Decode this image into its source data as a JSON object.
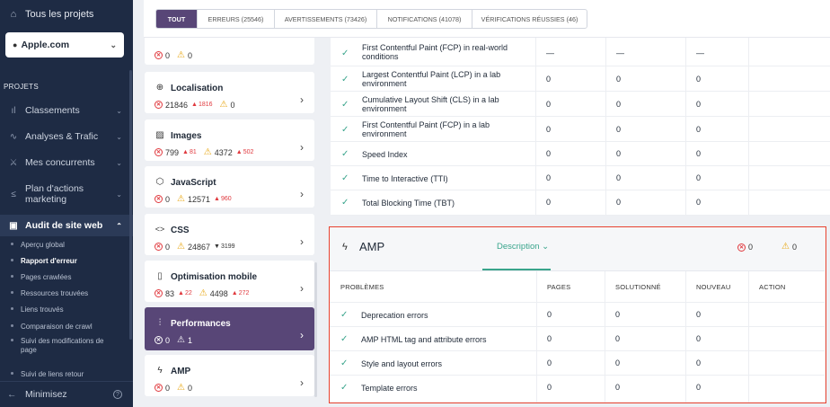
{
  "sidebar": {
    "top_link": "Tous les projets",
    "site": "Apple.com",
    "section": "PROJETS",
    "nav": [
      {
        "label": "Classements",
        "icon": "bar-chart-icon"
      },
      {
        "label": "Analyses & Trafic",
        "icon": "pulse-icon"
      },
      {
        "label": "Mes concurrents",
        "icon": "competitors-icon"
      },
      {
        "label": "Plan d'actions marketing",
        "icon": "plan-icon"
      },
      {
        "label": "Audit de site web",
        "icon": "audit-icon"
      }
    ],
    "sub": [
      "Aperçu global",
      "Rapport d'erreur",
      "Pages crawlées",
      "Ressources trouvées",
      "Liens trouvés",
      "Comparaison de crawl",
      "Suivi des modifications de page",
      "Suivi de liens retour"
    ],
    "minimize": "Minimisez"
  },
  "filters": [
    "TOUT",
    "ERREURS (25546)",
    "AVERTISSEMENTS (73426)",
    "NOTIFICATIONS (41078)",
    "VÉRIFICATIONS RÉUSSIES (46)"
  ],
  "categories": [
    {
      "name": "",
      "icon": "",
      "errors": "0",
      "warnings": "0",
      "err_delta": "",
      "warn_delta": ""
    },
    {
      "name": "Localisation",
      "icon": "globe-icon",
      "errors": "21846",
      "err_delta": "1816",
      "warnings": "0",
      "warn_delta": ""
    },
    {
      "name": "Images",
      "icon": "image-icon",
      "errors": "799",
      "err_delta": "81",
      "warnings": "4372",
      "warn_delta": "502"
    },
    {
      "name": "JavaScript",
      "icon": "code-cube-icon",
      "errors": "0",
      "err_delta": "",
      "warnings": "12571",
      "warn_delta": "960"
    },
    {
      "name": "CSS",
      "icon": "code-icon",
      "errors": "0",
      "err_delta": "",
      "warnings": "24867",
      "warn_delta": "3199"
    },
    {
      "name": "Optimisation mobile",
      "icon": "mobile-icon",
      "errors": "83",
      "err_delta": "22",
      "warnings": "4498",
      "warn_delta": "272"
    },
    {
      "name": "Performances",
      "icon": "sliders-icon",
      "errors": "0",
      "err_delta": "",
      "warnings": "1",
      "warn_delta": ""
    },
    {
      "name": "AMP",
      "icon": "bolt-icon",
      "errors": "0",
      "err_delta": "",
      "warnings": "0",
      "warn_delta": ""
    }
  ],
  "perf_rows": [
    {
      "label": "First Contentful Paint (FCP) in real-world conditions",
      "pages": "—",
      "solved": "—",
      "new": "—"
    },
    {
      "label": "Largest Contentful Paint (LCP) in a lab environment",
      "pages": "0",
      "solved": "0",
      "new": "0"
    },
    {
      "label": "Cumulative Layout Shift (CLS) in a lab environment",
      "pages": "0",
      "solved": "0",
      "new": "0"
    },
    {
      "label": "First Contentful Paint (FCP) in a lab environment",
      "pages": "0",
      "solved": "0",
      "new": "0"
    },
    {
      "label": "Speed Index",
      "pages": "0",
      "solved": "0",
      "new": "0"
    },
    {
      "label": "Time to Interactive (TTI)",
      "pages": "0",
      "solved": "0",
      "new": "0"
    },
    {
      "label": "Total Blocking Time (TBT)",
      "pages": "0",
      "solved": "0",
      "new": "0"
    }
  ],
  "amp": {
    "title": "AMP",
    "description": "Description",
    "errors": "0",
    "warnings": "0",
    "headers": [
      "PROBLÈMES",
      "PAGES",
      "SOLUTIONNÉ",
      "NOUVEAU",
      "ACTION"
    ],
    "rows": [
      {
        "label": "Deprecation errors",
        "pages": "0",
        "solved": "0",
        "new": "0"
      },
      {
        "label": "AMP HTML tag and attribute errors",
        "pages": "0",
        "solved": "0",
        "new": "0"
      },
      {
        "label": "Style and layout errors",
        "pages": "0",
        "solved": "0",
        "new": "0"
      },
      {
        "label": "Template errors",
        "pages": "0",
        "solved": "0",
        "new": "0"
      }
    ]
  }
}
